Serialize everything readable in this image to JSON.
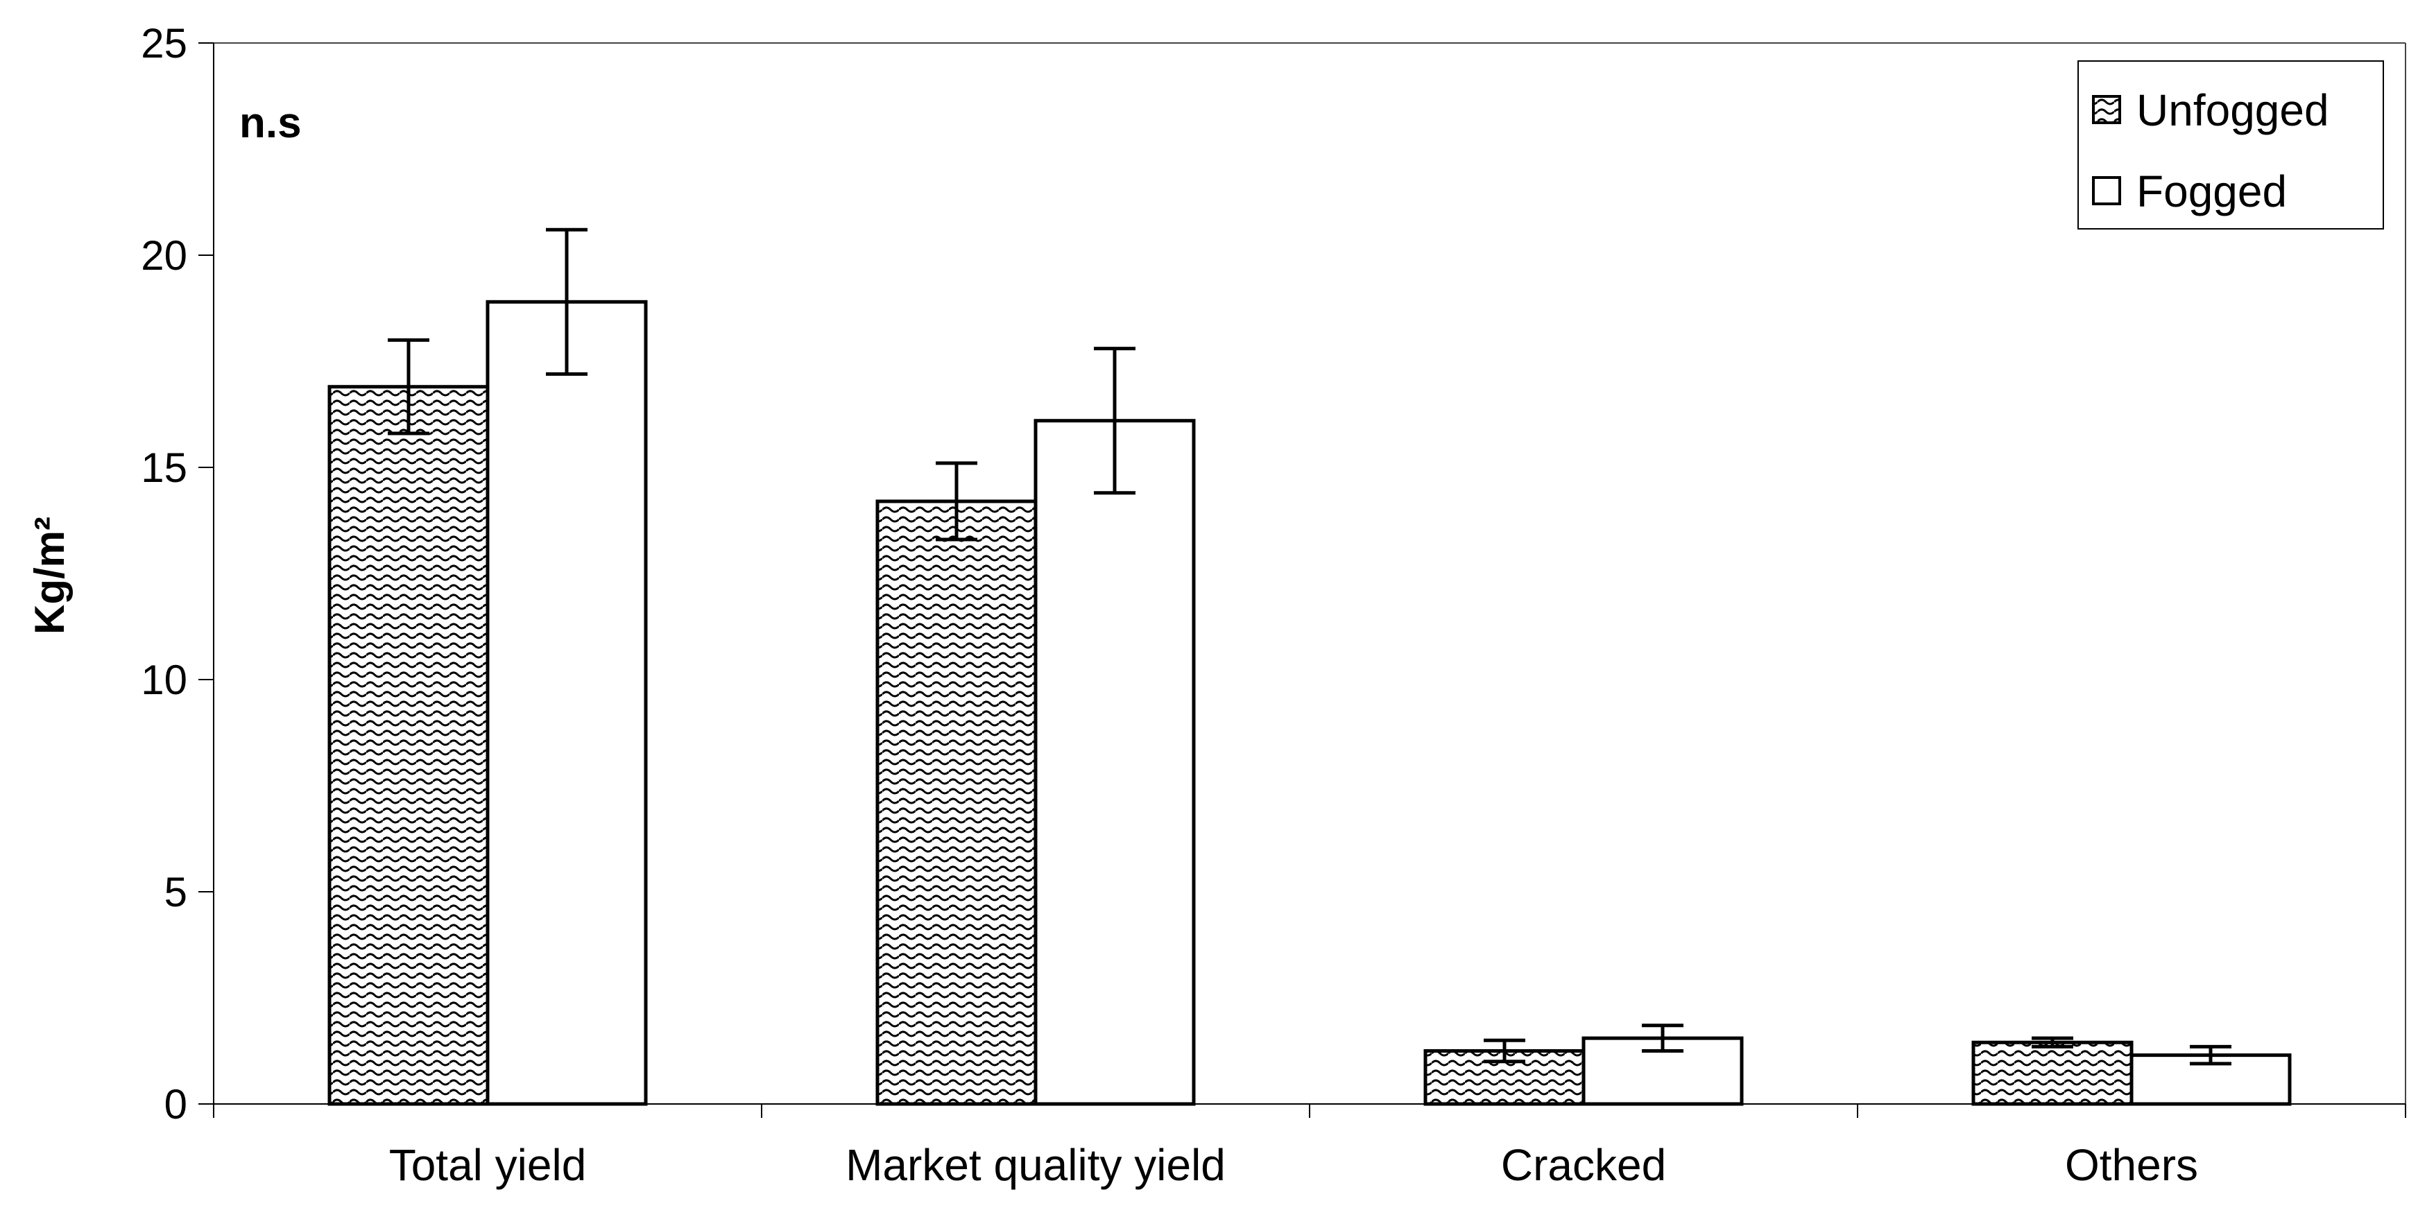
{
  "chart_data": {
    "type": "bar",
    "title": "",
    "xlabel": "",
    "ylabel": "Kg/m²",
    "ylim": [
      0,
      25
    ],
    "yticks": [
      0,
      5,
      10,
      15,
      20,
      25
    ],
    "categories": [
      "Total yield",
      "Market quality yield",
      "Cracked",
      "Others"
    ],
    "series": [
      {
        "name": "Unfogged",
        "pattern": "wavy-hatch",
        "values": [
          16.9,
          14.2,
          1.25,
          1.45
        ],
        "error": [
          1.1,
          0.9,
          0.25,
          0.1
        ]
      },
      {
        "name": "Fogged",
        "pattern": "solid-white",
        "values": [
          18.9,
          16.1,
          1.55,
          1.15
        ],
        "error": [
          1.7,
          1.7,
          0.3,
          0.2
        ]
      }
    ],
    "annotations": [
      {
        "text": "n.s",
        "position": "top-left"
      }
    ],
    "legend": {
      "position": "top-right"
    },
    "grid": false
  }
}
